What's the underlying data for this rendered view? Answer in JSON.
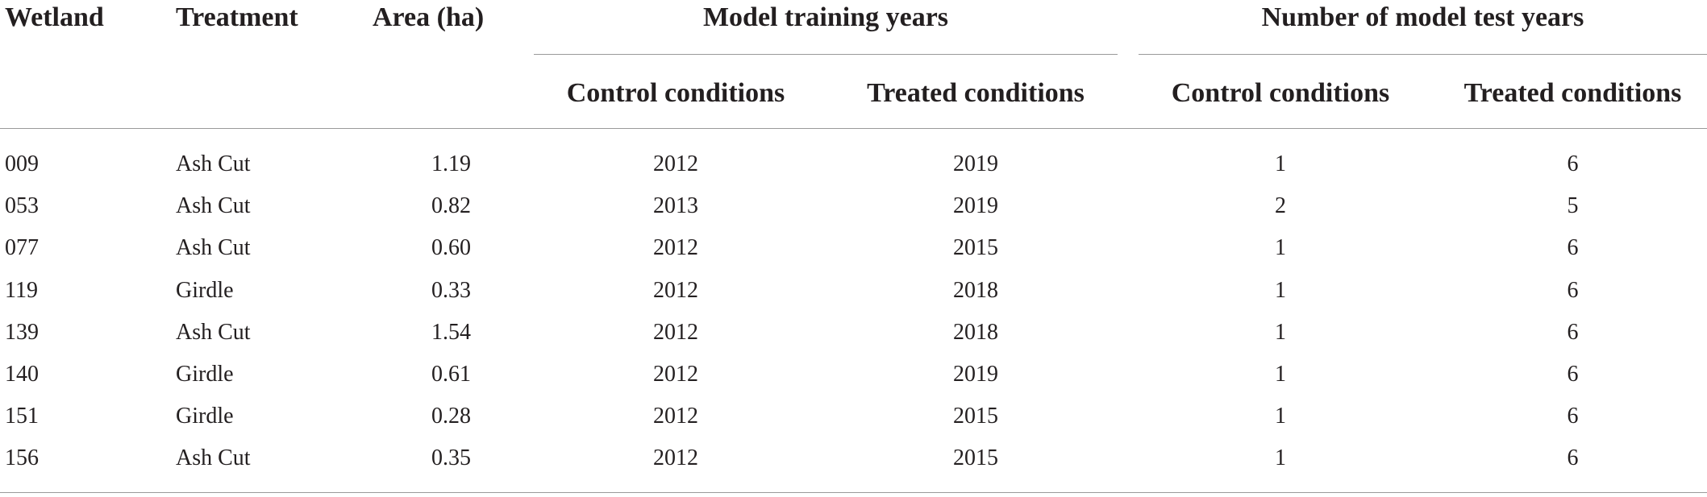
{
  "table": {
    "headers": {
      "wetland": "Wetland",
      "treatment": "Treatment",
      "area": "Area (ha)",
      "model_training_years": "Model training years",
      "number_of_model_test_years": "Number of model test years",
      "training_control": "Control conditions",
      "training_treated": "Treated conditions",
      "test_control": "Control conditions",
      "test_treated": "Treated conditions"
    },
    "rows": [
      {
        "wetland": "009",
        "treatment": "Ash Cut",
        "area": "1.19",
        "train_control": "2012",
        "train_treated": "2019",
        "test_control": "1",
        "test_treated": "6"
      },
      {
        "wetland": "053",
        "treatment": "Ash Cut",
        "area": "0.82",
        "train_control": "2013",
        "train_treated": "2019",
        "test_control": "2",
        "test_treated": "5"
      },
      {
        "wetland": "077",
        "treatment": "Ash Cut",
        "area": "0.60",
        "train_control": "2012",
        "train_treated": "2015",
        "test_control": "1",
        "test_treated": "6"
      },
      {
        "wetland": "119",
        "treatment": "Girdle",
        "area": "0.33",
        "train_control": "2012",
        "train_treated": "2018",
        "test_control": "1",
        "test_treated": "6"
      },
      {
        "wetland": "139",
        "treatment": "Ash Cut",
        "area": "1.54",
        "train_control": "2012",
        "train_treated": "2018",
        "test_control": "1",
        "test_treated": "6"
      },
      {
        "wetland": "140",
        "treatment": "Girdle",
        "area": "0.61",
        "train_control": "2012",
        "train_treated": "2019",
        "test_control": "1",
        "test_treated": "6"
      },
      {
        "wetland": "151",
        "treatment": "Girdle",
        "area": "0.28",
        "train_control": "2012",
        "train_treated": "2015",
        "test_control": "1",
        "test_treated": "6"
      },
      {
        "wetland": "156",
        "treatment": "Ash Cut",
        "area": "0.35",
        "train_control": "2012",
        "train_treated": "2015",
        "test_control": "1",
        "test_treated": "6"
      }
    ]
  }
}
